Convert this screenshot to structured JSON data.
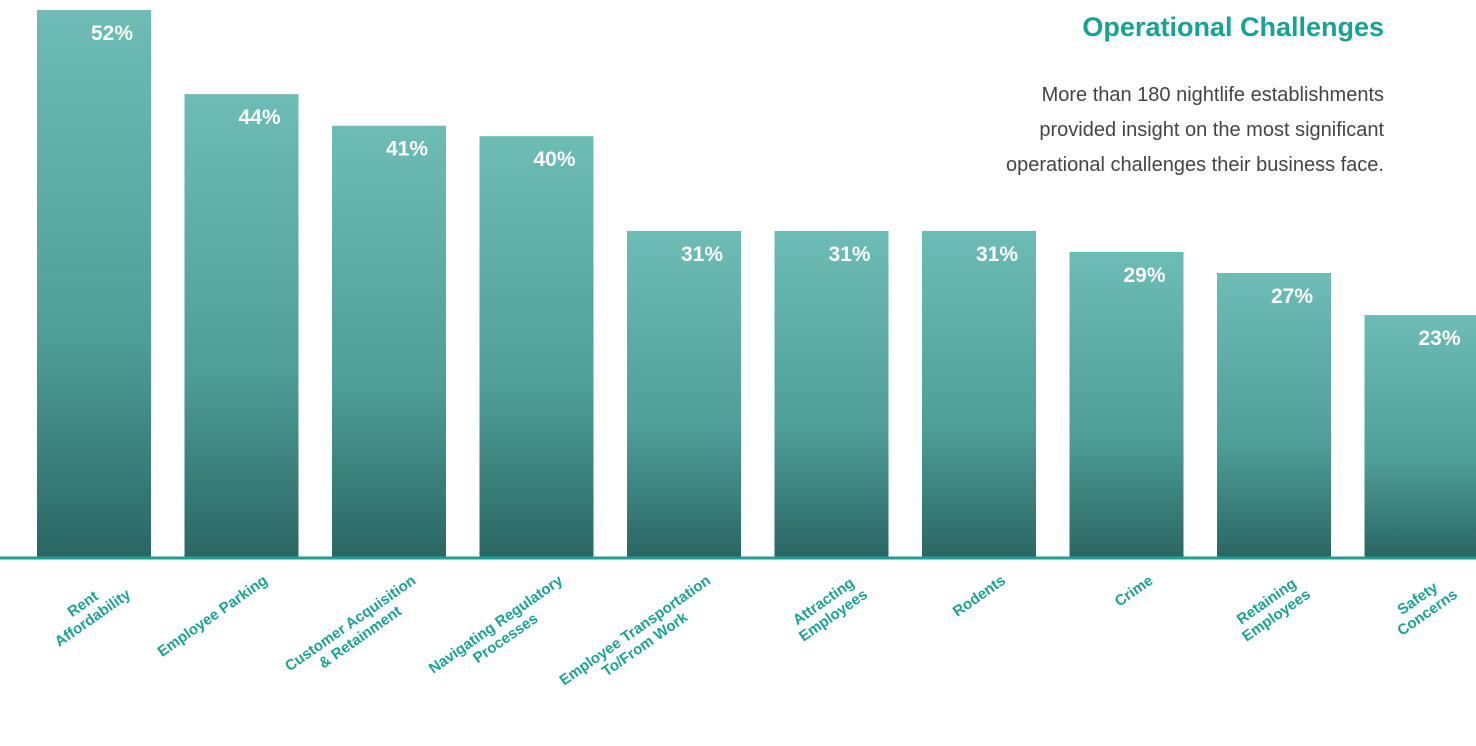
{
  "chart_data": {
    "type": "bar",
    "title": "Operational Challenges",
    "subtitle": "More than 180 nightlife establishments\nprovided insight on the most significant\noperational challenges their business face.",
    "categories": [
      "Rent\nAffordability",
      "Employee Parking",
      "Customer Acquisition\n& Retainment",
      "Navigating Regulatory\nProcesses",
      "Employee Transportation\nTo/From Work",
      "Attracting\nEmployees",
      "Rodents",
      "Crime",
      "Retaining\nEmployees",
      "Safety\nConcerns"
    ],
    "values": [
      52,
      44,
      41,
      40,
      31,
      31,
      31,
      29,
      27,
      23
    ],
    "value_labels": [
      "52%",
      "44%",
      "41%",
      "40%",
      "31%",
      "31%",
      "31%",
      "29%",
      "27%",
      "23%"
    ],
    "color": "#4fa39c"
  }
}
